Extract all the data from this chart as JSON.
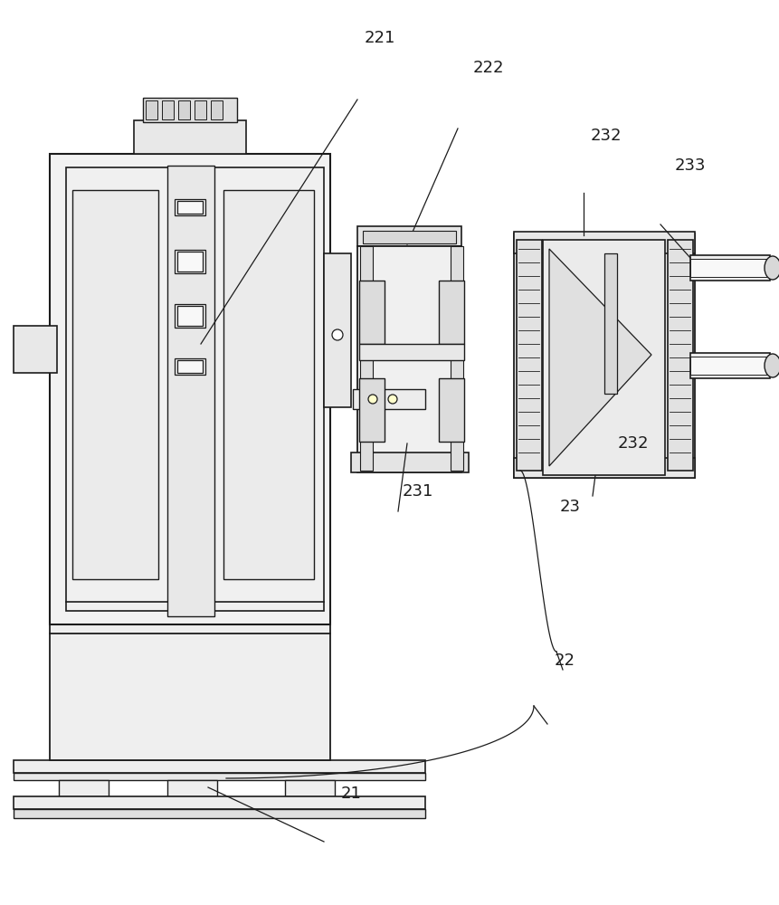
{
  "bg": "#ffffff",
  "lc": "#1c1c1c",
  "fc0": "#ffffff",
  "fc1": "#f5f5f5",
  "fc2": "#eeeeee",
  "fc3": "#e4e4e4",
  "fc4": "#d8d8d8",
  "figsize": [
    8.61,
    10.0
  ],
  "dpi": 100,
  "labels": [
    "221",
    "222",
    "232",
    "233",
    "231",
    "23",
    "232",
    "22",
    "21"
  ],
  "lx": [
    420,
    540,
    670,
    763,
    462,
    630,
    700,
    624,
    388
  ],
  "ly": [
    42,
    75,
    150,
    183,
    543,
    560,
    490,
    730,
    877
  ]
}
